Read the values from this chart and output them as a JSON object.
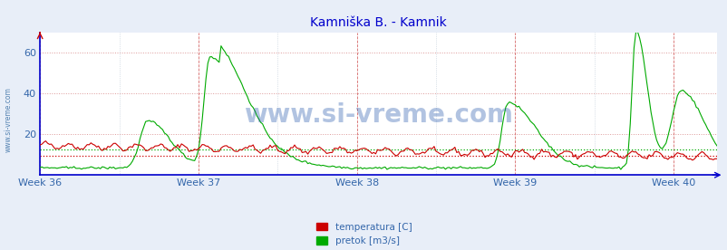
{
  "title": "Kamniška B. - Kamnik",
  "title_color": "#0000cc",
  "title_fontsize": 10,
  "fig_bg_color": "#e8eef8",
  "plot_bg_color": "#ffffff",
  "xlabel_color": "#3366aa",
  "x_tick_labels": [
    "Week 36",
    "Week 37",
    "Week 38",
    "Week 39",
    "Week 40"
  ],
  "x_tick_positions": [
    0,
    84,
    168,
    252,
    336
  ],
  "ylim": [
    0,
    70
  ],
  "yticks": [
    20,
    40,
    60
  ],
  "grid_h_color": "#dd9999",
  "grid_v_color": "#aabbcc",
  "avg_temp": 9.5,
  "avg_flow": 12.5,
  "watermark": "www.si-vreme.com",
  "watermark_color": "#2255aa",
  "watermark_alpha": 0.35,
  "legend_temp_color": "#cc0000",
  "legend_flow_color": "#00aa00",
  "legend_temp_label": "temperatura [C]",
  "legend_flow_label": "pretok [m3/s]",
  "left_label": "www.si-vreme.com",
  "left_label_color": "#4477aa",
  "spine_color": "#0000cc",
  "total_points": 360
}
